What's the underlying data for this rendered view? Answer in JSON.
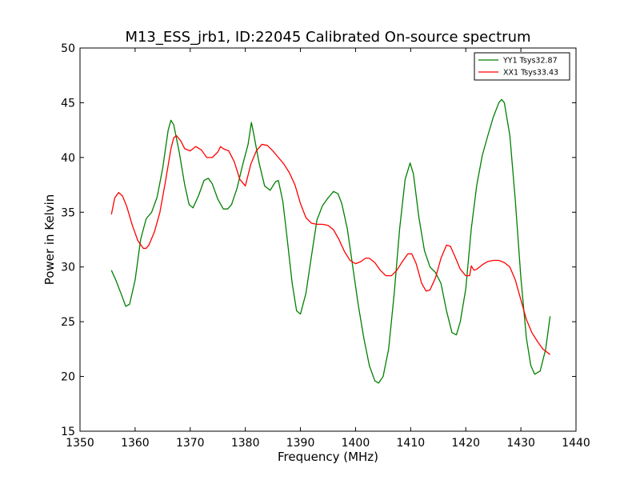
{
  "chart_data": {
    "type": "line",
    "title": "M13_ESS_jrb1, ID:22045 Calibrated On-source spectrum",
    "xlabel": "Frequency (MHz)",
    "ylabel": "Power in Kelvin",
    "xlim": [
      1350,
      1440
    ],
    "ylim": [
      15,
      50
    ],
    "xticks": [
      1350,
      1360,
      1370,
      1380,
      1390,
      1400,
      1410,
      1420,
      1430,
      1440
    ],
    "yticks": [
      15,
      20,
      25,
      30,
      35,
      40,
      45,
      50
    ],
    "grid": false,
    "legend_position": "top-right",
    "series": [
      {
        "name": "YY1 Tsys32.87",
        "color": "#008000",
        "x": [
          1355.7,
          1356.5,
          1357.5,
          1358.3,
          1359.0,
          1360.0,
          1361.0,
          1362.0,
          1363.0,
          1364.0,
          1365.0,
          1366.0,
          1366.5,
          1367.0,
          1368.0,
          1369.0,
          1369.8,
          1370.5,
          1371.5,
          1372.5,
          1373.3,
          1374.0,
          1375.0,
          1376.0,
          1376.8,
          1377.5,
          1378.5,
          1379.5,
          1380.5,
          1381.1,
          1381.5,
          1382.5,
          1383.5,
          1384.5,
          1385.5,
          1386.0,
          1386.8,
          1387.5,
          1388.5,
          1389.3,
          1390.0,
          1391.0,
          1392.0,
          1393.0,
          1394.0,
          1395.0,
          1396.0,
          1396.8,
          1397.5,
          1398.5,
          1399.5,
          1400.5,
          1401.5,
          1402.5,
          1403.5,
          1404.2,
          1405.0,
          1406.0,
          1407.0,
          1408.0,
          1409.0,
          1409.9,
          1410.5,
          1411.5,
          1412.5,
          1413.5,
          1414.5,
          1415.5,
          1416.5,
          1417.5,
          1418.3,
          1419.0,
          1420.0,
          1421.0,
          1422.0,
          1423.0,
          1424.0,
          1425.0,
          1426.0,
          1426.5,
          1427.0,
          1428.0,
          1429.0,
          1430.0,
          1431.0,
          1431.8,
          1432.5,
          1433.5,
          1434.5,
          1435.3
        ],
        "values": [
          29.7,
          28.8,
          27.5,
          26.4,
          26.6,
          28.8,
          32.5,
          34.4,
          35.0,
          36.4,
          39.0,
          42.5,
          43.4,
          43.0,
          40.5,
          37.5,
          35.7,
          35.4,
          36.5,
          37.9,
          38.1,
          37.6,
          36.2,
          35.3,
          35.3,
          35.7,
          37.2,
          39.3,
          41.2,
          43.2,
          42.2,
          39.5,
          37.4,
          37.0,
          37.8,
          37.9,
          36.0,
          33.0,
          28.5,
          26.0,
          25.7,
          27.6,
          31.0,
          34.3,
          35.6,
          36.3,
          36.9,
          36.7,
          35.8,
          33.5,
          30.0,
          26.5,
          23.5,
          21.0,
          19.6,
          19.4,
          20.0,
          22.5,
          27.5,
          33.5,
          38.0,
          39.5,
          38.5,
          34.5,
          31.5,
          30.0,
          29.5,
          28.5,
          26.0,
          24.0,
          23.8,
          25.0,
          28.0,
          33.5,
          37.5,
          40.2,
          42.0,
          43.7,
          45.0,
          45.3,
          45.0,
          42.0,
          36.0,
          29.0,
          23.5,
          21.0,
          20.2,
          20.5,
          22.5,
          25.5
        ]
      },
      {
        "name": "XX1 Tsys33.43",
        "color": "#ff0000",
        "x": [
          1355.7,
          1356.3,
          1357.0,
          1357.7,
          1358.5,
          1359.5,
          1360.5,
          1361.5,
          1362.0,
          1362.5,
          1363.5,
          1364.5,
          1365.5,
          1366.5,
          1367.0,
          1367.5,
          1368.3,
          1369.0,
          1370.0,
          1371.0,
          1372.0,
          1373.0,
          1374.0,
          1375.0,
          1375.5,
          1376.0,
          1377.0,
          1378.0,
          1379.0,
          1380.0,
          1381.0,
          1382.0,
          1383.0,
          1384.0,
          1385.0,
          1386.0,
          1387.0,
          1388.0,
          1389.0,
          1390.0,
          1391.0,
          1392.0,
          1393.0,
          1394.0,
          1395.0,
          1396.0,
          1397.0,
          1398.0,
          1399.0,
          1400.0,
          1401.0,
          1401.8,
          1402.5,
          1403.5,
          1404.5,
          1405.5,
          1406.5,
          1407.5,
          1408.5,
          1409.5,
          1410.2,
          1411.0,
          1412.0,
          1412.8,
          1413.5,
          1414.5,
          1415.5,
          1416.5,
          1417.2,
          1418.0,
          1419.0,
          1420.0,
          1420.7,
          1421.0,
          1421.5,
          1422.0,
          1423.0,
          1424.0,
          1425.0,
          1426.0,
          1427.0,
          1428.0,
          1429.0,
          1430.0,
          1431.0,
          1432.0,
          1433.0,
          1434.0,
          1435.3
        ],
        "values": [
          34.8,
          36.3,
          36.8,
          36.5,
          35.5,
          33.8,
          32.4,
          31.7,
          31.7,
          32.0,
          33.2,
          35.0,
          37.8,
          40.8,
          41.8,
          42.0,
          41.5,
          40.8,
          40.6,
          41.0,
          40.7,
          40.0,
          40.0,
          40.5,
          41.0,
          40.8,
          40.6,
          39.6,
          38.0,
          37.4,
          39.4,
          40.6,
          41.2,
          41.1,
          40.6,
          40.0,
          39.4,
          38.6,
          37.5,
          35.8,
          34.5,
          34.0,
          33.9,
          33.9,
          33.8,
          33.4,
          32.5,
          31.4,
          30.6,
          30.3,
          30.5,
          30.8,
          30.8,
          30.4,
          29.7,
          29.2,
          29.2,
          29.7,
          30.5,
          31.2,
          31.2,
          30.3,
          28.5,
          27.8,
          27.9,
          29.0,
          30.8,
          32.0,
          31.9,
          31.0,
          29.8,
          29.2,
          29.2,
          30.1,
          29.7,
          29.8,
          30.2,
          30.5,
          30.6,
          30.6,
          30.4,
          30.0,
          28.8,
          27.0,
          25.2,
          24.0,
          23.2,
          22.5,
          22.0
        ]
      }
    ]
  }
}
